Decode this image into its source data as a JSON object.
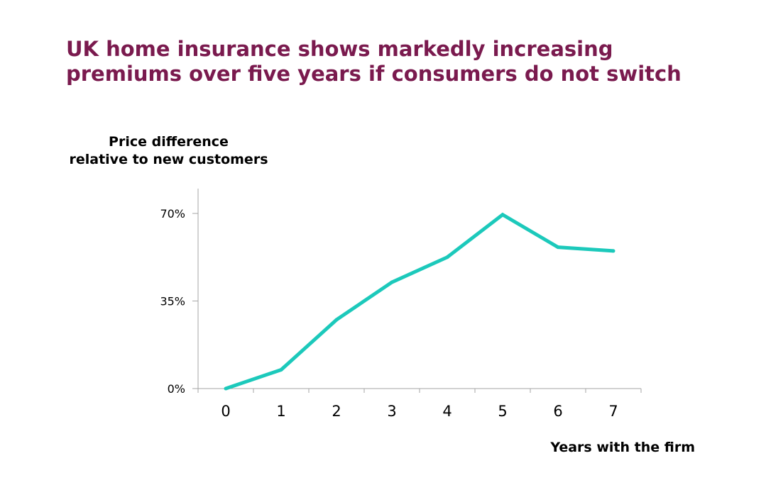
{
  "title_lines": [
    "UK home insurance shows markedly increasing",
    "premiums over five years if consumers do not switch"
  ],
  "chart_data": {
    "type": "line",
    "title": "UK home insurance shows markedly increasing premiums over five years if consumers do not switch",
    "ylabel_lines": [
      "Price difference",
      "relative to new customers"
    ],
    "xlabel": "Years with the firm",
    "x": [
      0,
      1,
      2,
      3,
      4,
      5,
      6,
      7
    ],
    "x_tick_labels": [
      "0",
      "1",
      "2",
      "3",
      "4",
      "5",
      "6",
      "7"
    ],
    "y": [
      0,
      7.5,
      27.5,
      42.5,
      52.5,
      69.5,
      56.5,
      55
    ],
    "y_ticks": [
      0,
      35,
      70
    ],
    "y_tick_labels": [
      "0%",
      "35%",
      "70%"
    ],
    "ylim": [
      0,
      80
    ],
    "grid": false,
    "legend": "none",
    "line_color": "#1cc9bb",
    "axis_color": "#a6a6a6"
  }
}
